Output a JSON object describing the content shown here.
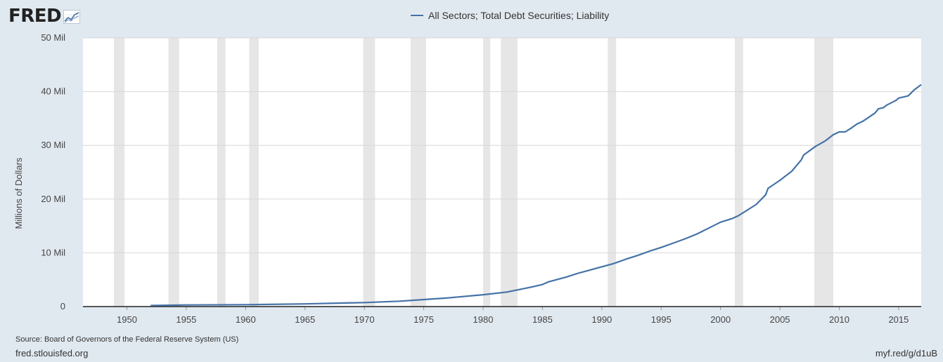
{
  "header": {
    "logo_text": "FRED",
    "logo_icon": "line-graph-icon"
  },
  "footer": {
    "source": "Source: Board of Governors of the Federal Reserve System (US)",
    "site": "fred.stlouisfed.org",
    "shortlink": "myf.red/g/d1uB"
  },
  "colors": {
    "series": "#4572a7",
    "recession": "#e6e6e6",
    "grid": "#d8d8d8",
    "background": "#e1e9f0",
    "plot": "#ffffff"
  },
  "chart_data": {
    "type": "line",
    "title": "",
    "xlabel": "",
    "ylabel": "Millions of Dollars",
    "xlim": [
      1946.3,
      2016.9
    ],
    "ylim": [
      0,
      50000000
    ],
    "grid": true,
    "legend_position": "top",
    "x_ticks": [
      {
        "value": 1950,
        "label": "1950"
      },
      {
        "value": 1955,
        "label": "1955"
      },
      {
        "value": 1960,
        "label": "1960"
      },
      {
        "value": 1965,
        "label": "1965"
      },
      {
        "value": 1970,
        "label": "1970"
      },
      {
        "value": 1975,
        "label": "1975"
      },
      {
        "value": 1980,
        "label": "1980"
      },
      {
        "value": 1985,
        "label": "1985"
      },
      {
        "value": 1990,
        "label": "1990"
      },
      {
        "value": 1995,
        "label": "1995"
      },
      {
        "value": 2000,
        "label": "2000"
      },
      {
        "value": 2005,
        "label": "2005"
      },
      {
        "value": 2010,
        "label": "2010"
      },
      {
        "value": 2015,
        "label": "2015"
      }
    ],
    "y_ticks": [
      {
        "value": 0,
        "label": "0"
      },
      {
        "value": 10000000,
        "label": "10 Mil"
      },
      {
        "value": 20000000,
        "label": "20 Mil"
      },
      {
        "value": 30000000,
        "label": "30 Mil"
      },
      {
        "value": 40000000,
        "label": "40 Mil"
      },
      {
        "value": 50000000,
        "label": "50 Mil"
      }
    ],
    "recessions": [
      [
        1948.9,
        1949.8
      ],
      [
        1953.5,
        1954.4
      ],
      [
        1957.6,
        1958.3
      ],
      [
        1960.3,
        1961.1
      ],
      [
        1969.9,
        1970.9
      ],
      [
        1973.9,
        1975.2
      ],
      [
        1980.0,
        1980.6
      ],
      [
        1981.5,
        1982.9
      ],
      [
        1990.5,
        1991.2
      ],
      [
        2001.2,
        2001.9
      ],
      [
        2007.9,
        2009.5
      ]
    ],
    "series": [
      {
        "name": "All Sectors; Total Debt Securities; Liability",
        "x": [
          1952.0,
          1955,
          1960,
          1965,
          1968,
          1970,
          1973,
          1975,
          1977,
          1980,
          1982,
          1984,
          1985,
          1985.5,
          1987,
          1988,
          1989,
          1990,
          1991,
          1992,
          1993,
          1994,
          1995,
          1996,
          1997,
          1998,
          1999,
          2000,
          2001,
          2001.5,
          2002,
          2003,
          2003.8,
          2004,
          2005,
          2006,
          2006.8,
          2007,
          2008,
          2008.8,
          2009.5,
          2010,
          2010.5,
          2011,
          2011.5,
          2012,
          2013,
          2013.3,
          2013.7,
          2014,
          2014.8,
          2015,
          2015.8,
          2016.3,
          2016.9
        ],
        "values": [
          200000,
          300000,
          350000,
          500000,
          650000,
          750000,
          1000000,
          1300000,
          1600000,
          2200000,
          2700000,
          3600000,
          4100000,
          4600000,
          5500000,
          6200000,
          6800000,
          7400000,
          8000000,
          8800000,
          9500000,
          10300000,
          11000000,
          11800000,
          12600000,
          13500000,
          14600000,
          15700000,
          16400000,
          16900000,
          17600000,
          19000000,
          20800000,
          22000000,
          23500000,
          25200000,
          27300000,
          28200000,
          29800000,
          30800000,
          32000000,
          32500000,
          32500000,
          33200000,
          34000000,
          34500000,
          36000000,
          36800000,
          37000000,
          37500000,
          38400000,
          38800000,
          39200000,
          40300000,
          41300000
        ]
      }
    ]
  }
}
